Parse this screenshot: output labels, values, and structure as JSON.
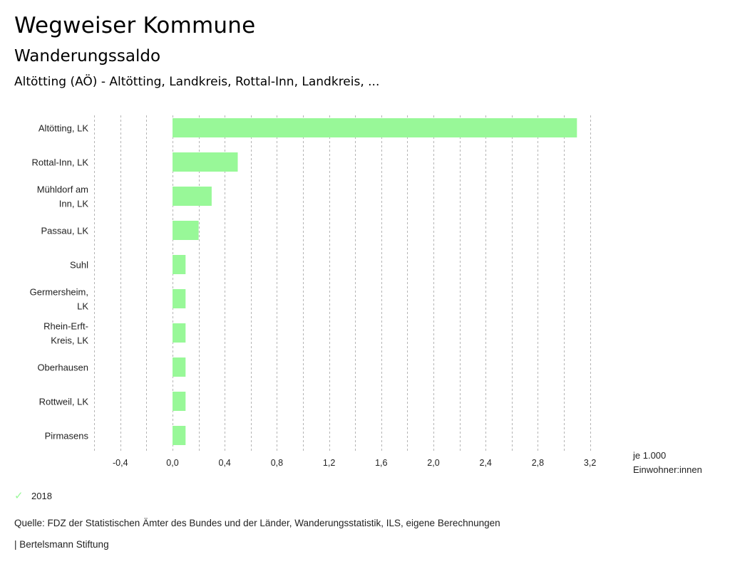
{
  "header": {
    "title": "Wegweiser Kommune",
    "subtitle": "Wanderungssaldo",
    "region": "Altötting (AÖ) - Altötting, Landkreis, Rottal-Inn, Landkreis, ..."
  },
  "chart_data": {
    "type": "bar",
    "orientation": "horizontal",
    "title": "Wanderungssaldo",
    "xlabel": "je 1.000 Einwohner:innen",
    "ylabel": "",
    "xlim": [
      -0.6,
      3.3
    ],
    "grid": true,
    "categories": [
      [
        "Altötting, LK"
      ],
      [
        "Rottal-Inn, LK"
      ],
      [
        "Mühldorf am",
        "Inn, LK"
      ],
      [
        "Passau, LK"
      ],
      [
        "Suhl"
      ],
      [
        "Germersheim,",
        "LK"
      ],
      [
        "Rhein-Erft-",
        "Kreis, LK"
      ],
      [
        "Oberhausen"
      ],
      [
        "Rottweil, LK"
      ],
      [
        "Pirmasens"
      ]
    ],
    "series": [
      {
        "name": "2018",
        "color": "#98f898",
        "values": [
          3.1,
          0.5,
          0.3,
          0.2,
          0.1,
          0.1,
          0.1,
          0.1,
          0.1,
          0.1
        ]
      }
    ],
    "ticks": [
      -0.4,
      0.0,
      0.4,
      0.8,
      1.2,
      1.6,
      2.0,
      2.4,
      2.8,
      3.2
    ],
    "tick_labels": [
      "-0,4",
      "0,0",
      "0,4",
      "0,8",
      "1,2",
      "1,6",
      "2,0",
      "2,4",
      "2,8",
      "3,2"
    ],
    "gridlines": [
      -0.6,
      -0.4,
      -0.2,
      0.0,
      0.2,
      0.4,
      0.6,
      0.8,
      1.0,
      1.2,
      1.4,
      1.6,
      1.8,
      2.0,
      2.2,
      2.4,
      2.6,
      2.8,
      3.0,
      3.2
    ],
    "unit_lines": [
      "je 1.000",
      "Einwohner:innen"
    ],
    "legend": {
      "position": "bottom-left",
      "entries": [
        "2018"
      ]
    }
  },
  "legend": {
    "label": "2018",
    "icon": "check-icon"
  },
  "footer": {
    "source": "Quelle: FDZ der Statistischen Ämter des Bundes und der Länder, Wanderungsstatistik, ILS, eigene Berechnungen",
    "credit": "| Bertelsmann Stiftung"
  }
}
